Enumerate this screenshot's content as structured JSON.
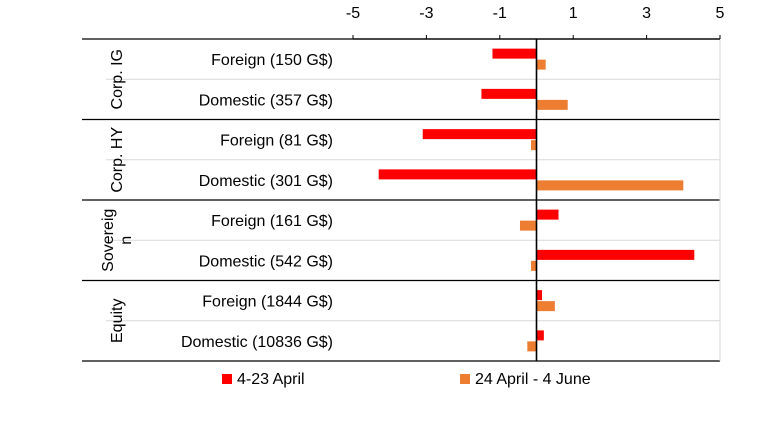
{
  "chart_data": {
    "type": "bar",
    "orientation": "horizontal",
    "x_ticks": [
      "-5",
      "-3",
      "-1",
      "1",
      "3",
      "5"
    ],
    "xlim": [
      -5,
      5
    ],
    "x_axis_position": "top",
    "grid": "horizontal lines between categories",
    "legend_position": "bottom",
    "groups": [
      {
        "label_lines": [
          "Corp. IG"
        ],
        "categories": [
          "Foreign (150 G$)",
          "Domestic (357 G$)"
        ]
      },
      {
        "label_lines": [
          "Corp. HY"
        ],
        "categories": [
          "Foreign (81 G$)",
          "Domestic (301 G$)"
        ]
      },
      {
        "label_lines": [
          "Sovereig",
          "n"
        ],
        "categories": [
          "Foreign (161 G$)",
          "Domestic (542 G$)"
        ]
      },
      {
        "label_lines": [
          "Equity"
        ],
        "categories": [
          "Foreign (1844 G$)",
          "Domestic (10836 G$)"
        ]
      }
    ],
    "series": [
      {
        "name": "4-23 April",
        "color": "#ff0000",
        "values": [
          -1.2,
          -1.5,
          -3.1,
          -4.3,
          0.6,
          4.3,
          0.15,
          0.2
        ]
      },
      {
        "name": "24 April - 4 June",
        "color": "#ed7d31",
        "values": [
          0.25,
          0.85,
          -0.15,
          4.0,
          -0.45,
          -0.15,
          0.5,
          -0.25
        ]
      }
    ]
  }
}
